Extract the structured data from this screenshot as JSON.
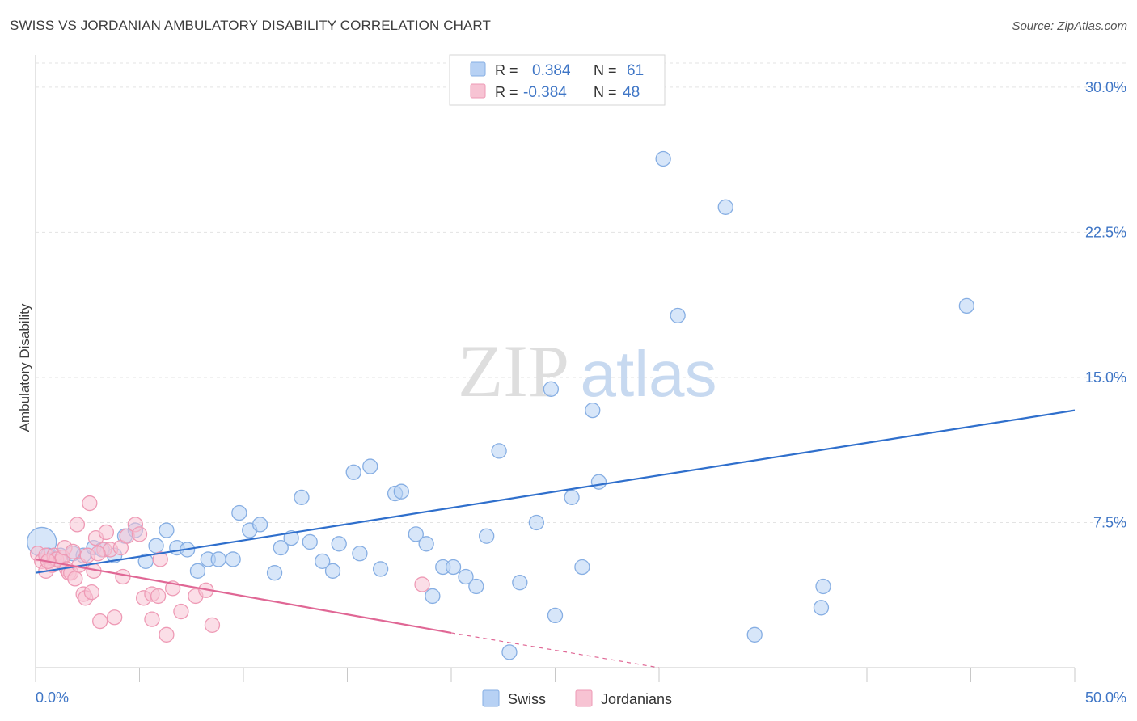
{
  "header": {
    "title": "SWISS VS JORDANIAN AMBULATORY DISABILITY CORRELATION CHART",
    "source": "Source: ZipAtlas.com"
  },
  "watermark": {
    "zip": "ZIP",
    "atlas": "atlas"
  },
  "colors": {
    "swiss_fill": "#b7d1f4",
    "swiss_stroke": "#86aee3",
    "swiss_line": "#2f6fcc",
    "jordan_fill": "#f7c3d3",
    "jordan_stroke": "#ee9ab5",
    "jordan_line": "#e06795",
    "axis_label": "#3f76c6",
    "grid": "#e3e3e3"
  },
  "legend": {
    "rows": [
      {
        "r_label": "R =",
        "r_value": "0.384",
        "n_label": "N =",
        "n_value": "61"
      },
      {
        "r_label": "R =",
        "r_value": "-0.384",
        "n_label": "N =",
        "n_value": "48"
      }
    ],
    "bottom": [
      "Swiss",
      "Jordanians"
    ]
  },
  "chart_data": {
    "type": "scatter",
    "title": "SWISS VS JORDANIAN AMBULATORY DISABILITY CORRELATION CHART",
    "xlabel": "",
    "ylabel": "Ambulatory Disability",
    "xlim": [
      0,
      50
    ],
    "ylim": [
      0,
      31.5
    ],
    "x_tick_labels": [
      "0.0%",
      "50.0%"
    ],
    "y_ticks": [
      7.5,
      15.0,
      22.5,
      30.0
    ],
    "y_tick_labels": [
      "7.5%",
      "15.0%",
      "22.5%",
      "30.0%"
    ],
    "grid": true,
    "series": [
      {
        "name": "Swiss",
        "r": 0.384,
        "n": 61,
        "trend": {
          "x": [
            0,
            50
          ],
          "y": [
            4.9,
            13.3
          ]
        },
        "points": [
          {
            "x": 0.3,
            "y": 6.5,
            "big": true
          },
          {
            "x": 0.6,
            "y": 5.8
          },
          {
            "x": 0.9,
            "y": 5.6
          },
          {
            "x": 1.2,
            "y": 5.8
          },
          {
            "x": 1.8,
            "y": 5.9
          },
          {
            "x": 2.3,
            "y": 5.8
          },
          {
            "x": 2.8,
            "y": 6.2
          },
          {
            "x": 3.2,
            "y": 6.1
          },
          {
            "x": 3.8,
            "y": 5.8
          },
          {
            "x": 4.3,
            "y": 6.8
          },
          {
            "x": 4.8,
            "y": 7.1
          },
          {
            "x": 5.3,
            "y": 5.5
          },
          {
            "x": 5.8,
            "y": 6.3
          },
          {
            "x": 6.3,
            "y": 7.1
          },
          {
            "x": 6.8,
            "y": 6.2
          },
          {
            "x": 7.3,
            "y": 6.1
          },
          {
            "x": 7.8,
            "y": 5.0
          },
          {
            "x": 8.3,
            "y": 5.6
          },
          {
            "x": 8.8,
            "y": 5.6
          },
          {
            "x": 9.5,
            "y": 5.6
          },
          {
            "x": 9.8,
            "y": 8.0
          },
          {
            "x": 10.3,
            "y": 7.1
          },
          {
            "x": 10.8,
            "y": 7.4
          },
          {
            "x": 11.5,
            "y": 4.9
          },
          {
            "x": 11.8,
            "y": 6.2
          },
          {
            "x": 12.3,
            "y": 6.7
          },
          {
            "x": 12.8,
            "y": 8.8
          },
          {
            "x": 13.2,
            "y": 6.5
          },
          {
            "x": 13.8,
            "y": 5.5
          },
          {
            "x": 14.3,
            "y": 5.0
          },
          {
            "x": 14.6,
            "y": 6.4
          },
          {
            "x": 15.3,
            "y": 10.1
          },
          {
            "x": 15.6,
            "y": 5.9
          },
          {
            "x": 16.1,
            "y": 10.4
          },
          {
            "x": 16.6,
            "y": 5.1
          },
          {
            "x": 17.3,
            "y": 9.0
          },
          {
            "x": 17.6,
            "y": 9.1
          },
          {
            "x": 18.3,
            "y": 6.9
          },
          {
            "x": 18.8,
            "y": 6.4
          },
          {
            "x": 19.1,
            "y": 3.7
          },
          {
            "x": 19.6,
            "y": 5.2
          },
          {
            "x": 20.1,
            "y": 5.2
          },
          {
            "x": 20.7,
            "y": 4.7
          },
          {
            "x": 21.2,
            "y": 4.2
          },
          {
            "x": 21.7,
            "y": 6.8
          },
          {
            "x": 22.3,
            "y": 11.2
          },
          {
            "x": 22.8,
            "y": 0.8
          },
          {
            "x": 23.3,
            "y": 4.4
          },
          {
            "x": 24.1,
            "y": 7.5
          },
          {
            "x": 24.8,
            "y": 14.4
          },
          {
            "x": 25.0,
            "y": 2.7
          },
          {
            "x": 25.8,
            "y": 8.8
          },
          {
            "x": 26.3,
            "y": 5.2
          },
          {
            "x": 26.8,
            "y": 13.3
          },
          {
            "x": 27.1,
            "y": 9.6
          },
          {
            "x": 30.2,
            "y": 26.3
          },
          {
            "x": 30.9,
            "y": 18.2
          },
          {
            "x": 33.2,
            "y": 23.8
          },
          {
            "x": 34.6,
            "y": 1.7
          },
          {
            "x": 37.8,
            "y": 3.1
          },
          {
            "x": 37.9,
            "y": 4.2
          },
          {
            "x": 44.8,
            "y": 18.7
          }
        ]
      },
      {
        "name": "Jordanians",
        "r": -0.384,
        "n": 48,
        "trend": {
          "x": [
            0,
            20
          ],
          "y": [
            5.6,
            1.8
          ]
        },
        "trend_dashed": {
          "x": [
            20,
            30
          ],
          "y": [
            1.8,
            0
          ]
        },
        "points": [
          {
            "x": 0.1,
            "y": 5.9
          },
          {
            "x": 0.3,
            "y": 5.5
          },
          {
            "x": 0.5,
            "y": 5.8
          },
          {
            "x": 0.5,
            "y": 5.0
          },
          {
            "x": 0.8,
            "y": 5.3
          },
          {
            "x": 0.9,
            "y": 5.8
          },
          {
            "x": 1.0,
            "y": 5.6
          },
          {
            "x": 1.2,
            "y": 5.5
          },
          {
            "x": 1.3,
            "y": 5.7
          },
          {
            "x": 1.4,
            "y": 6.2
          },
          {
            "x": 1.5,
            "y": 5.1
          },
          {
            "x": 1.6,
            "y": 4.9
          },
          {
            "x": 1.7,
            "y": 4.9
          },
          {
            "x": 1.8,
            "y": 6.0
          },
          {
            "x": 1.9,
            "y": 4.6
          },
          {
            "x": 2.0,
            "y": 7.4
          },
          {
            "x": 2.1,
            "y": 5.3
          },
          {
            "x": 2.3,
            "y": 3.8
          },
          {
            "x": 2.4,
            "y": 3.6
          },
          {
            "x": 2.5,
            "y": 5.8
          },
          {
            "x": 2.6,
            "y": 8.5
          },
          {
            "x": 2.7,
            "y": 3.9
          },
          {
            "x": 2.8,
            "y": 5.0
          },
          {
            "x": 2.9,
            "y": 6.7
          },
          {
            "x": 3.1,
            "y": 2.4
          },
          {
            "x": 3.3,
            "y": 6.1
          },
          {
            "x": 3.4,
            "y": 7.0
          },
          {
            "x": 3.6,
            "y": 6.1
          },
          {
            "x": 3.8,
            "y": 2.6
          },
          {
            "x": 4.1,
            "y": 6.2
          },
          {
            "x": 4.2,
            "y": 4.7
          },
          {
            "x": 4.4,
            "y": 6.8
          },
          {
            "x": 4.8,
            "y": 7.4
          },
          {
            "x": 5.0,
            "y": 6.9
          },
          {
            "x": 5.2,
            "y": 3.6
          },
          {
            "x": 5.6,
            "y": 3.8
          },
          {
            "x": 5.6,
            "y": 2.5
          },
          {
            "x": 5.9,
            "y": 3.7
          },
          {
            "x": 6.0,
            "y": 5.6
          },
          {
            "x": 6.3,
            "y": 1.7
          },
          {
            "x": 6.6,
            "y": 4.1
          },
          {
            "x": 7.0,
            "y": 2.9
          },
          {
            "x": 7.7,
            "y": 3.7
          },
          {
            "x": 8.2,
            "y": 4.0
          },
          {
            "x": 8.5,
            "y": 2.2
          },
          {
            "x": 18.6,
            "y": 4.3
          },
          {
            "x": 3.0,
            "y": 5.9
          },
          {
            "x": 0.6,
            "y": 5.5
          }
        ]
      }
    ]
  }
}
